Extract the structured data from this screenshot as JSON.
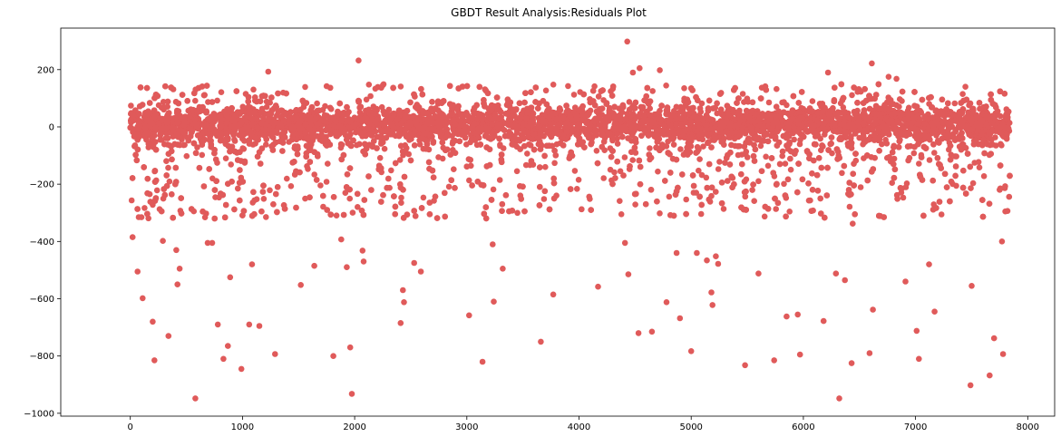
{
  "chart_data": {
    "type": "scatter",
    "title": "GBDT Result Analysis:Residuals Plot",
    "xlabel": "",
    "ylabel": "",
    "xlim": [
      -620,
      8240
    ],
    "ylim": [
      -1010,
      345
    ],
    "xticks": [
      0,
      1000,
      2000,
      3000,
      4000,
      5000,
      6000,
      7000,
      8000
    ],
    "xtick_labels": [
      "0",
      "1000",
      "2000",
      "3000",
      "4000",
      "5000",
      "6000",
      "7000",
      "8000"
    ],
    "yticks": [
      200,
      0,
      -200,
      -400,
      -600,
      -800,
      -1000
    ],
    "ytick_labels": [
      "200",
      "0",
      "−200",
      "−400",
      "−600",
      "−800",
      "−1000"
    ],
    "grid": false,
    "marker_color": "#e05a5a",
    "n_points_approx": 7840,
    "core_band": {
      "x_range": [
        0,
        7840
      ],
      "y_range": [
        -60,
        80
      ]
    },
    "outliers": [
      {
        "x": 20,
        "y": -385
      },
      {
        "x": 75,
        "y": -315
      },
      {
        "x": 65,
        "y": -505
      },
      {
        "x": 110,
        "y": -598
      },
      {
        "x": 200,
        "y": -680
      },
      {
        "x": 215,
        "y": -815
      },
      {
        "x": 290,
        "y": -398
      },
      {
        "x": 340,
        "y": -730
      },
      {
        "x": 410,
        "y": -430
      },
      {
        "x": 420,
        "y": -550
      },
      {
        "x": 440,
        "y": -495
      },
      {
        "x": 580,
        "y": -948
      },
      {
        "x": 690,
        "y": -405
      },
      {
        "x": 730,
        "y": -405
      },
      {
        "x": 780,
        "y": -690
      },
      {
        "x": 830,
        "y": -810
      },
      {
        "x": 870,
        "y": -765
      },
      {
        "x": 890,
        "y": -525
      },
      {
        "x": 990,
        "y": -845
      },
      {
        "x": 1060,
        "y": -690
      },
      {
        "x": 1085,
        "y": -480
      },
      {
        "x": 1150,
        "y": -695
      },
      {
        "x": 1230,
        "y": 193
      },
      {
        "x": 1290,
        "y": -793
      },
      {
        "x": 1520,
        "y": -552
      },
      {
        "x": 1640,
        "y": -485
      },
      {
        "x": 1810,
        "y": -800
      },
      {
        "x": 1880,
        "y": -393
      },
      {
        "x": 1930,
        "y": -490
      },
      {
        "x": 1960,
        "y": -770
      },
      {
        "x": 1975,
        "y": -932
      },
      {
        "x": 2035,
        "y": 232
      },
      {
        "x": 2070,
        "y": -432
      },
      {
        "x": 2080,
        "y": -470
      },
      {
        "x": 2410,
        "y": -685
      },
      {
        "x": 2430,
        "y": -570
      },
      {
        "x": 2440,
        "y": -612
      },
      {
        "x": 2530,
        "y": -475
      },
      {
        "x": 2590,
        "y": -505
      },
      {
        "x": 3020,
        "y": -658
      },
      {
        "x": 3140,
        "y": -820
      },
      {
        "x": 3230,
        "y": -410
      },
      {
        "x": 3240,
        "y": -610
      },
      {
        "x": 3320,
        "y": -495
      },
      {
        "x": 3660,
        "y": -750
      },
      {
        "x": 3770,
        "y": -585
      },
      {
        "x": 4170,
        "y": -558
      },
      {
        "x": 4410,
        "y": -405
      },
      {
        "x": 4430,
        "y": 298
      },
      {
        "x": 4440,
        "y": -515
      },
      {
        "x": 4480,
        "y": 190
      },
      {
        "x": 4530,
        "y": -720
      },
      {
        "x": 4540,
        "y": 205
      },
      {
        "x": 4650,
        "y": -715
      },
      {
        "x": 4720,
        "y": 198
      },
      {
        "x": 4780,
        "y": -612
      },
      {
        "x": 4870,
        "y": -440
      },
      {
        "x": 4900,
        "y": -668
      },
      {
        "x": 5000,
        "y": -783
      },
      {
        "x": 5050,
        "y": -440
      },
      {
        "x": 5140,
        "y": -466
      },
      {
        "x": 5180,
        "y": -578
      },
      {
        "x": 5190,
        "y": -622
      },
      {
        "x": 5220,
        "y": -452
      },
      {
        "x": 5240,
        "y": -478
      },
      {
        "x": 5480,
        "y": -832
      },
      {
        "x": 5600,
        "y": -512
      },
      {
        "x": 5740,
        "y": -815
      },
      {
        "x": 5850,
        "y": -662
      },
      {
        "x": 5950,
        "y": -655
      },
      {
        "x": 5970,
        "y": -795
      },
      {
        "x": 6180,
        "y": -678
      },
      {
        "x": 6220,
        "y": 190
      },
      {
        "x": 6290,
        "y": -512
      },
      {
        "x": 6320,
        "y": -948
      },
      {
        "x": 6370,
        "y": -535
      },
      {
        "x": 6430,
        "y": -825
      },
      {
        "x": 6440,
        "y": -338
      },
      {
        "x": 6590,
        "y": -790
      },
      {
        "x": 6610,
        "y": 222
      },
      {
        "x": 6620,
        "y": -638
      },
      {
        "x": 6760,
        "y": 175
      },
      {
        "x": 6830,
        "y": 168
      },
      {
        "x": 6910,
        "y": -540
      },
      {
        "x": 7010,
        "y": -712
      },
      {
        "x": 7030,
        "y": -810
      },
      {
        "x": 7120,
        "y": -480
      },
      {
        "x": 7170,
        "y": -645
      },
      {
        "x": 7490,
        "y": -902
      },
      {
        "x": 7500,
        "y": -555
      },
      {
        "x": 7660,
        "y": -868
      },
      {
        "x": 7700,
        "y": -738
      },
      {
        "x": 7770,
        "y": -400
      },
      {
        "x": 7780,
        "y": -793
      },
      {
        "x": 7800,
        "y": -295
      }
    ]
  }
}
